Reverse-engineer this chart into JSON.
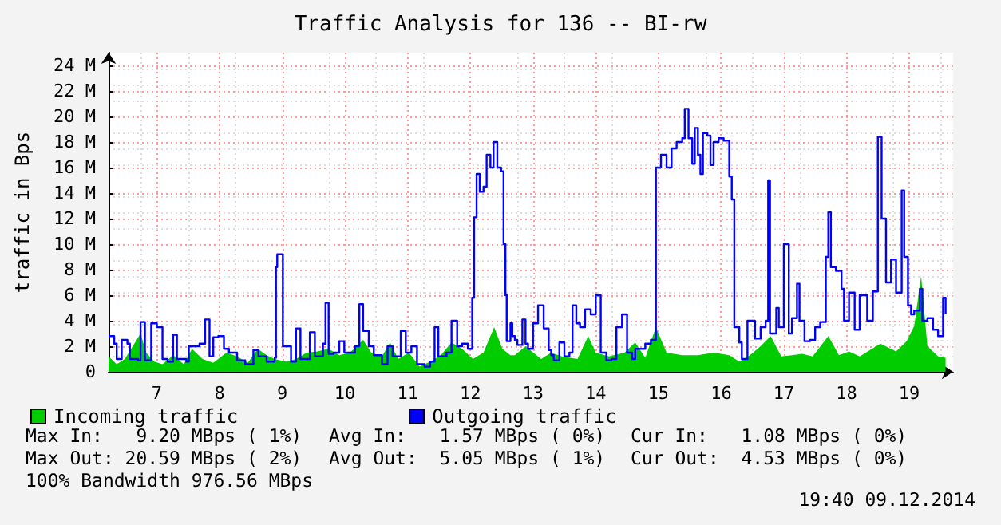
{
  "chart_data": {
    "type": "step",
    "title": "Traffic Analysis for 136 -- BI-rw",
    "ylabel": "traffic in Bps",
    "xlim": [
      6.23,
      19.7
    ],
    "xticks": [
      7,
      8,
      9,
      10,
      11,
      12,
      13,
      14,
      15,
      16,
      17,
      18,
      19
    ],
    "ylim": [
      0,
      25
    ],
    "yticks": [
      0,
      {
        "value": 2,
        "label": "2 M"
      },
      {
        "value": 4,
        "label": "4 M"
      },
      {
        "value": 6,
        "label": "6 M"
      },
      {
        "value": 8,
        "label": "8 M"
      },
      {
        "value": 10,
        "label": "10 M"
      },
      {
        "value": 12,
        "label": "12 M"
      },
      {
        "value": 14,
        "label": "14 M"
      },
      {
        "value": 16,
        "label": "16 M"
      },
      {
        "value": 18,
        "label": "18 M"
      },
      {
        "value": 20,
        "label": "20 M"
      },
      {
        "value": 22,
        "label": "22 M"
      },
      {
        "value": 24,
        "label": "24 M"
      }
    ],
    "grid": true,
    "legend": "bottom",
    "series": [
      {
        "name": "Incoming traffic",
        "type": "area",
        "color": "#00cc00",
        "x": [
          6.23,
          6.36,
          6.49,
          6.74,
          6.83,
          6.96,
          7.09,
          7.26,
          7.43,
          7.56,
          7.73,
          7.9,
          8.11,
          8.28,
          8.45,
          8.61,
          8.75,
          8.88,
          9.05,
          9.22,
          9.39,
          9.56,
          9.74,
          9.91,
          10.08,
          10.29,
          10.42,
          10.59,
          10.72,
          10.85,
          11.02,
          11.19,
          11.36,
          11.53,
          11.7,
          11.87,
          12.04,
          12.21,
          12.38,
          12.51,
          12.64,
          12.71,
          12.88,
          13.13,
          13.29,
          13.46,
          13.71,
          13.88,
          14.0,
          14.21,
          14.46,
          14.63,
          14.79,
          14.96,
          15.13,
          15.38,
          15.63,
          15.88,
          16.13,
          16.29,
          16.46,
          16.63,
          16.79,
          16.96,
          17.13,
          17.29,
          17.46,
          17.71,
          17.88,
          18.04,
          18.21,
          18.54,
          18.79,
          18.96,
          19.08,
          19.19,
          19.29,
          19.46,
          19.58
        ],
        "values": [
          1.2,
          0.6,
          1.0,
          3.0,
          1.5,
          0.8,
          0.6,
          1.3,
          0.6,
          1.8,
          1.0,
          0.7,
          1.5,
          1.2,
          0.7,
          1.8,
          1.3,
          1.0,
          0.8,
          1.0,
          1.5,
          1.6,
          1.8,
          1.3,
          1.5,
          2.5,
          1.5,
          1.2,
          2.3,
          1.0,
          1.5,
          0.4,
          0.8,
          1.3,
          2.3,
          1.8,
          1.0,
          1.5,
          3.5,
          1.8,
          1.3,
          1.3,
          2.0,
          1.0,
          1.5,
          1.2,
          1.0,
          2.8,
          1.5,
          1.2,
          1.5,
          2.3,
          1.1,
          3.5,
          1.5,
          1.3,
          1.3,
          1.5,
          1.3,
          0.8,
          1.3,
          2.0,
          2.8,
          1.2,
          1.3,
          1.4,
          1.2,
          2.8,
          1.3,
          1.6,
          1.2,
          2.2,
          1.6,
          2.4,
          3.6,
          7.5,
          2.0,
          1.2,
          1.1
        ]
      },
      {
        "name": "Outgoing traffic",
        "color": "#0000ff",
        "x": [
          6.23,
          6.32,
          6.36,
          6.44,
          6.53,
          6.57,
          6.7,
          6.74,
          6.81,
          6.91,
          7.0,
          7.09,
          7.17,
          7.26,
          7.32,
          7.47,
          7.51,
          7.68,
          7.77,
          7.84,
          7.9,
          7.98,
          8.07,
          8.15,
          8.28,
          8.41,
          8.54,
          8.62,
          8.75,
          8.88,
          8.9,
          8.92,
          8.98,
          9.01,
          9.09,
          9.14,
          9.22,
          9.29,
          9.44,
          9.52,
          9.65,
          9.69,
          9.74,
          9.82,
          9.91,
          9.99,
          10.16,
          10.23,
          10.29,
          10.38,
          10.46,
          10.59,
          10.68,
          10.76,
          10.89,
          10.97,
          11.06,
          11.15,
          11.27,
          11.36,
          11.43,
          11.49,
          11.62,
          11.7,
          11.79,
          11.87,
          11.96,
          12.03,
          12.06,
          12.1,
          12.15,
          12.21,
          12.26,
          12.32,
          12.37,
          12.43,
          12.49,
          12.53,
          12.56,
          12.58,
          12.64,
          12.67,
          12.71,
          12.75,
          12.83,
          12.88,
          12.92,
          13.0,
          13.08,
          13.17,
          13.25,
          13.29,
          13.33,
          13.42,
          13.5,
          13.58,
          13.63,
          13.69,
          13.75,
          13.83,
          13.92,
          14.0,
          14.08,
          14.17,
          14.25,
          14.33,
          14.42,
          14.5,
          14.58,
          14.63,
          14.71,
          14.79,
          14.88,
          14.96,
          15.04,
          15.13,
          15.21,
          15.29,
          15.38,
          15.42,
          15.48,
          15.54,
          15.58,
          15.63,
          15.67,
          15.71,
          15.78,
          15.83,
          15.88,
          15.96,
          16.04,
          16.13,
          16.17,
          16.21,
          16.29,
          16.33,
          16.42,
          16.5,
          16.54,
          16.63,
          16.71,
          16.75,
          16.78,
          16.88,
          16.92,
          17.0,
          17.08,
          17.13,
          17.21,
          17.25,
          17.33,
          17.42,
          17.5,
          17.58,
          17.67,
          17.71,
          17.75,
          17.83,
          17.92,
          17.96,
          18.04,
          18.13,
          18.21,
          18.33,
          18.42,
          18.5,
          18.56,
          18.63,
          18.71,
          18.79,
          18.88,
          18.92,
          18.98,
          19.03,
          19.08,
          19.17,
          19.21,
          19.29,
          19.38,
          19.46,
          19.54,
          19.58
        ],
        "values": [
          2.8,
          2.2,
          1.0,
          2.5,
          2.2,
          1.0,
          0.9,
          3.9,
          0.9,
          3.8,
          3.5,
          1.0,
          0.8,
          2.9,
          1.0,
          0.8,
          2.0,
          2.2,
          4.1,
          1.2,
          2.7,
          2.8,
          1.8,
          1.5,
          0.9,
          0.6,
          1.7,
          1.2,
          0.8,
          1.1,
          8.2,
          9.2,
          9.2,
          2.0,
          2.0,
          0.8,
          3.4,
          1.0,
          3.1,
          1.2,
          2.2,
          5.4,
          1.4,
          1.5,
          2.4,
          1.5,
          2.0,
          5.3,
          3.2,
          2.0,
          1.3,
          0.6,
          2.0,
          1.2,
          3.2,
          1.5,
          2.0,
          0.6,
          0.4,
          0.8,
          3.5,
          1.2,
          1.5,
          4.0,
          2.0,
          2.2,
          1.8,
          5.8,
          12.1,
          15.5,
          14.1,
          14.5,
          17.0,
          16.0,
          18.0,
          16.0,
          15.7,
          10.0,
          6.0,
          2.4,
          3.8,
          2.8,
          2.5,
          2.1,
          4.1,
          2.2,
          1.8,
          3.8,
          5.2,
          3.4,
          1.7,
          1.3,
          0.9,
          2.3,
          1.2,
          1.5,
          5.2,
          3.8,
          3.5,
          4.9,
          4.5,
          6.0,
          1.5,
          0.9,
          1.0,
          3.5,
          4.5,
          1.5,
          1.0,
          1.8,
          1.8,
          2.2,
          2.5,
          16.0,
          17.0,
          16.0,
          17.5,
          18.0,
          18.3,
          20.6,
          18.3,
          16.3,
          19.1,
          17.0,
          15.5,
          18.7,
          18.5,
          16.2,
          18.0,
          18.3,
          18.1,
          15.3,
          13.5,
          3.5,
          2.3,
          1.0,
          4.0,
          4.0,
          2.6,
          3.5,
          4.0,
          15.0,
          3.0,
          5.0,
          3.5,
          10.0,
          3.0,
          4.2,
          6.9,
          4.0,
          2.4,
          2.5,
          3.5,
          3.9,
          9.0,
          12.5,
          8.2,
          7.9,
          6.5,
          4.0,
          6.2,
          3.3,
          6.0,
          4.0,
          6.3,
          18.4,
          12.0,
          7.0,
          8.8,
          6.2,
          14.2,
          9.0,
          5.2,
          4.5,
          4.8,
          6.5,
          4.0,
          4.2,
          3.3,
          2.8,
          5.8,
          4.5
        ]
      }
    ],
    "annotations": [
      "Max In:   9.20 MBps ( 1%)",
      "Avg In:   1.57 MBps ( 0%)",
      "Cur In:   1.08 MBps ( 0%)",
      "Max Out: 20.59 MBps ( 2%)",
      "Avg Out:  5.05 MBps ( 1%)",
      "Cur Out:  4.53 MBps ( 0%)",
      "100% Bandwidth 976.56 MBps",
      "19:40 09.12.2014"
    ]
  }
}
